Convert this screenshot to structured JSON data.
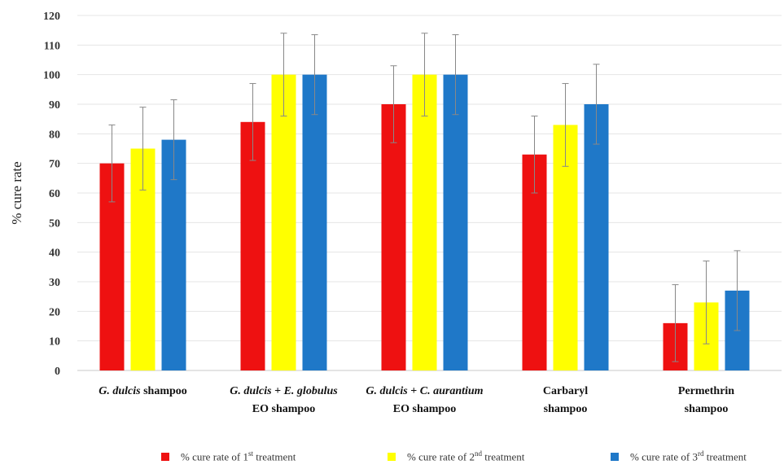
{
  "chart_data": {
    "type": "bar",
    "ylabel": "% cure rate",
    "ylim": [
      0,
      120
    ],
    "yticks": [
      0,
      10,
      20,
      30,
      40,
      50,
      60,
      70,
      80,
      90,
      100,
      110,
      120
    ],
    "grid": true,
    "legend_position": "bottom",
    "categories": [
      {
        "line1": [
          {
            "t": "G. dulcis",
            "i": true
          },
          {
            "t": " shampoo",
            "i": false
          }
        ],
        "line2": []
      },
      {
        "line1": [
          {
            "t": "G. dulcis",
            "i": true
          },
          {
            "t": " + ",
            "i": false
          },
          {
            "t": "E. globulus",
            "i": true
          }
        ],
        "line2": [
          {
            "t": "EO shampoo",
            "i": false
          }
        ]
      },
      {
        "line1": [
          {
            "t": "G. dulcis",
            "i": true
          },
          {
            "t": " + ",
            "i": false
          },
          {
            "t": "C. aurantium",
            "i": true
          }
        ],
        "line2": [
          {
            "t": "EO shampoo",
            "i": false
          }
        ]
      },
      {
        "line1": [
          {
            "t": "Carbaryl",
            "i": false
          }
        ],
        "line2": [
          {
            "t": "shampoo",
            "i": false
          }
        ]
      },
      {
        "line1": [
          {
            "t": "Permethrin",
            "i": false
          }
        ],
        "line2": [
          {
            "t": "shampoo",
            "i": false
          }
        ]
      }
    ],
    "series": [
      {
        "name": "% cure rate of 1st treatment",
        "name_pre": "% cure rate of 1",
        "name_sup": "st",
        "name_post": " treatment",
        "color": "#ee1111",
        "values": [
          70,
          84,
          90,
          73,
          16
        ],
        "errors": [
          13,
          13,
          13,
          13,
          13
        ]
      },
      {
        "name": "% cure rate of 2nd treatment",
        "name_pre": "% cure rate of 2",
        "name_sup": "nd",
        "name_post": " treatment",
        "color": "#ffff00",
        "values": [
          75,
          100,
          100,
          83,
          23
        ],
        "errors": [
          14,
          14,
          14,
          14,
          14
        ]
      },
      {
        "name": "% cure rate of 3rd treatment",
        "name_pre": "% cure rate of 3",
        "name_sup": "rd",
        "name_post": " treatment",
        "color": "#1f78c8",
        "values": [
          78,
          100,
          100,
          90,
          27
        ],
        "errors": [
          13.5,
          13.5,
          13.5,
          13.5,
          13.5
        ]
      }
    ]
  }
}
